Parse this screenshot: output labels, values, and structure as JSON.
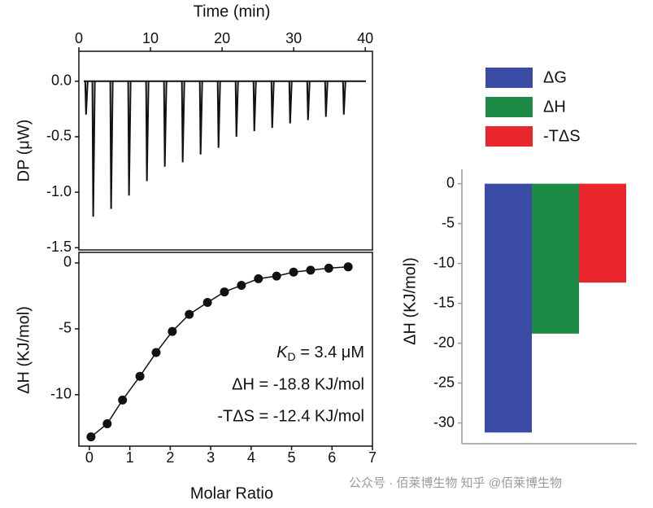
{
  "chart_data": [
    {
      "type": "stem",
      "xlabel": "Time (min)",
      "ylabel": "DP (μW)",
      "x": [
        1,
        2,
        4.5,
        7,
        9.5,
        12,
        14.5,
        17,
        19.5,
        22,
        24.5,
        27,
        29.5,
        32,
        34.5,
        37
      ],
      "values": [
        -0.3,
        -1.22,
        -1.15,
        -1.03,
        -0.9,
        -0.77,
        -0.73,
        -0.66,
        -0.6,
        -0.5,
        -0.45,
        -0.42,
        -0.38,
        -0.35,
        -0.32,
        -0.3
      ],
      "color": "#111111",
      "xlim": [
        0,
        41
      ],
      "xticks": [
        0,
        10,
        20,
        30,
        40
      ],
      "ylim": [
        -1.52,
        0.27
      ],
      "yticks": [
        {
          "value": 0,
          "label": "0.0"
        },
        -0.5,
        {
          "value": -1,
          "label": "-1.0"
        },
        -1.5
      ]
    },
    {
      "type": "line",
      "xlabel": "Molar Ratio",
      "ylabel": "ΔH (KJ/mol)",
      "x": [
        0.04,
        0.44,
        0.82,
        1.25,
        1.65,
        2.05,
        2.47,
        2.92,
        3.34,
        3.76,
        4.18,
        4.63,
        5.05,
        5.47,
        5.92,
        6.4
      ],
      "values": [
        -13.2,
        -12.2,
        -10.4,
        -8.6,
        -6.8,
        -5.2,
        -3.9,
        -3.0,
        -2.2,
        -1.7,
        -1.2,
        -1.0,
        -0.7,
        -0.55,
        -0.4,
        -0.3
      ],
      "color": "#111111",
      "markers": true,
      "xlim": [
        -0.26,
        7
      ],
      "xticks": [
        0,
        1,
        2,
        3,
        4,
        5,
        6,
        7
      ],
      "ylim": [
        -13.9,
        0.8
      ],
      "yticks": [
        0,
        -5,
        -10
      ],
      "annotations": [
        [
          "K",
          "D",
          " = 3.4 μM"
        ],
        "ΔH = -18.8 KJ/mol",
        "-TΔS = -12.4 KJ/mol"
      ]
    },
    {
      "type": "bar",
      "ylabel": "ΔH (KJ/mol)",
      "categories": [
        null
      ],
      "series": [
        {
          "name": "ΔG",
          "color": "#3a4ca6",
          "values": [
            -31.2
          ]
        },
        {
          "name": "ΔH",
          "color": "#1d8b46",
          "values": [
            -18.8
          ]
        },
        {
          "name": "-TΔS",
          "color": "#e8262b",
          "values": [
            -12.4
          ]
        }
      ],
      "ylim": [
        -32.6,
        1.8
      ],
      "yticks": [
        0,
        -5,
        -10,
        -15,
        -20,
        -25,
        -30
      ],
      "legend": "top"
    }
  ],
  "watermark": "公众号 · 佰莱博生物  知乎 @佰莱博生物"
}
